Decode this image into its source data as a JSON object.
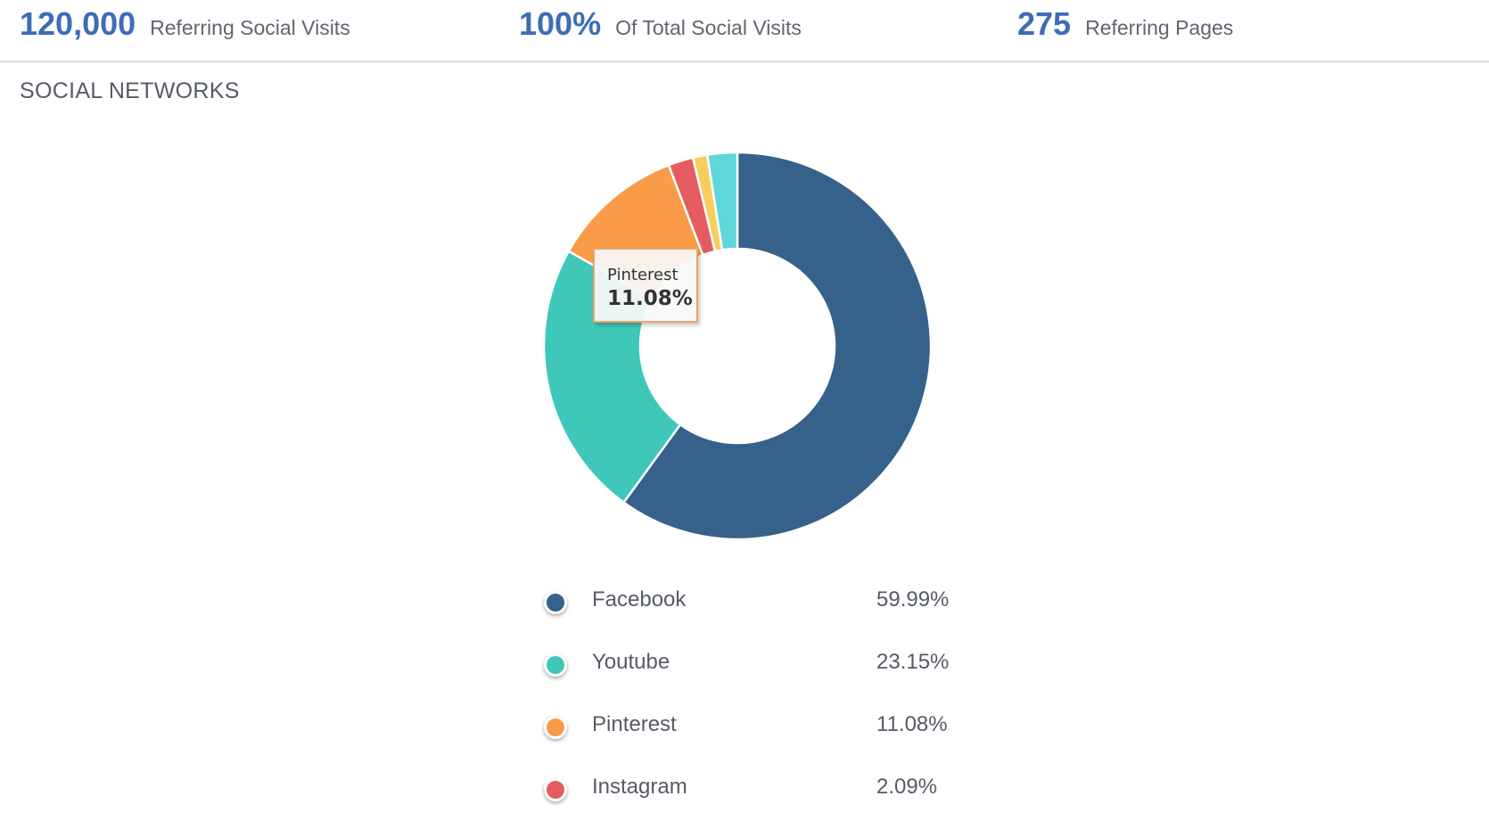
{
  "stats": [
    {
      "value": "120,000",
      "label": "Referring Social Visits"
    },
    {
      "value": "100%",
      "label": "Of Total Social Visits"
    },
    {
      "value": "275",
      "label": "Referring Pages"
    }
  ],
  "section_title": "SOCIAL NETWORKS",
  "tooltip": {
    "name": "Pinterest",
    "value": "11.08%"
  },
  "chart_data": {
    "type": "pie",
    "donut": true,
    "legend_position": "bottom",
    "slices": [
      {
        "name": "Facebook",
        "value": 59.99,
        "label": "59.99%",
        "color": "#36618b"
      },
      {
        "name": "Youtube",
        "value": 23.15,
        "label": "23.15%",
        "color": "#3fc7ba"
      },
      {
        "name": "Pinterest",
        "value": 11.08,
        "label": "11.08%",
        "color": "#f99b47"
      },
      {
        "name": "Instagram",
        "value": 2.09,
        "label": "2.09%",
        "color": "#e45c5f"
      },
      {
        "name": "",
        "value": 1.2,
        "label": "",
        "color": "#f7cd5e"
      },
      {
        "name": "",
        "value": 2.49,
        "label": "",
        "color": "#5ed6da"
      }
    ]
  }
}
